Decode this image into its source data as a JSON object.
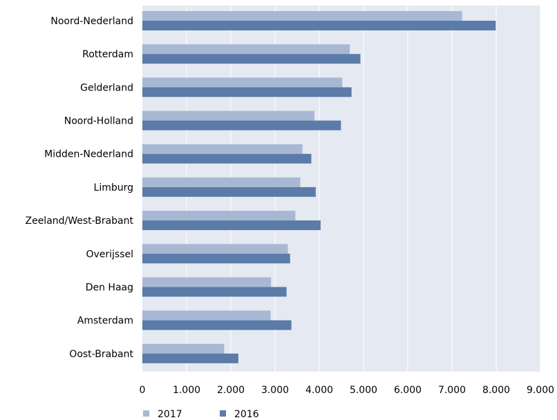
{
  "chart_data": {
    "type": "bar",
    "orientation": "horizontal",
    "categories": [
      "Noord-Nederland",
      "Rotterdam",
      "Gelderland",
      "Noord-Holland",
      "Midden-Nederland",
      "Limburg",
      "Zeeland/West-Brabant",
      "Overijssel",
      "Den Haag",
      "Amsterdam",
      "Oost-Brabant"
    ],
    "series": [
      {
        "name": "2017",
        "color": "#a8b8d4",
        "values": [
          7230,
          4690,
          4520,
          3890,
          3620,
          3570,
          3460,
          3290,
          2910,
          2900,
          1850
        ]
      },
      {
        "name": "2016",
        "color": "#5b7ba8",
        "values": [
          7990,
          4930,
          4730,
          4490,
          3820,
          3920,
          4030,
          3340,
          3260,
          3370,
          2170
        ]
      }
    ],
    "xlim": [
      0,
      9000
    ],
    "xticks": [
      0,
      1000,
      2000,
      3000,
      4000,
      5000,
      6000,
      7000,
      8000,
      9000
    ],
    "tick_labels": [
      "0",
      "1.000",
      "2.000",
      "3.000",
      "4.000",
      "5.000",
      "6.000",
      "7.000",
      "8.000",
      "9.000"
    ],
    "grid": true,
    "plot_background": "#e5e9f2",
    "legend_position": "bottom-left",
    "title": "",
    "xlabel": "",
    "ylabel": ""
  }
}
